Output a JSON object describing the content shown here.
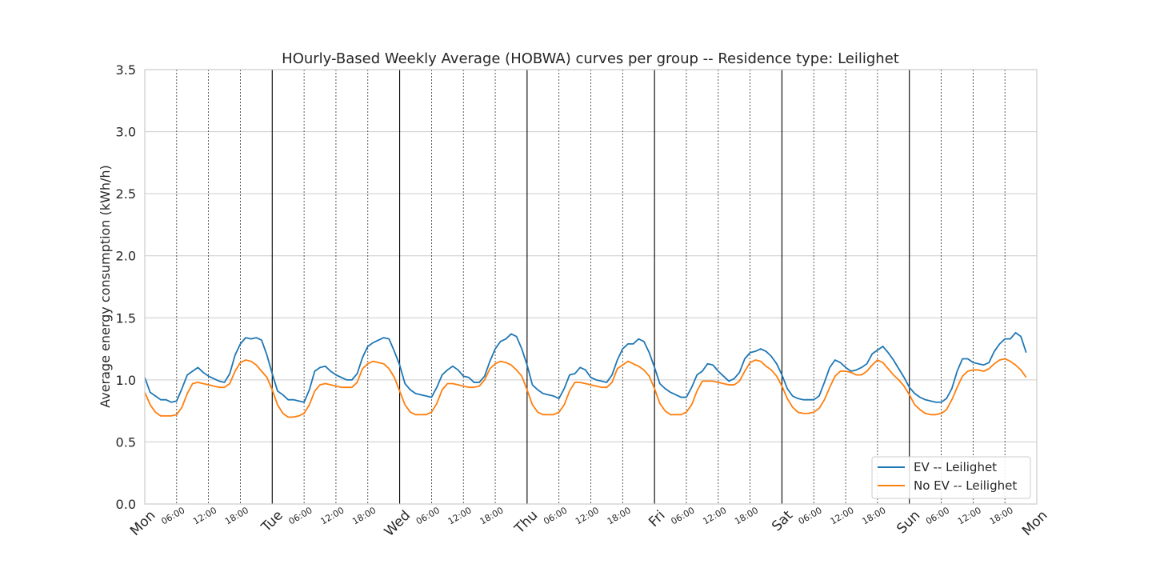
{
  "chart_data": {
    "type": "line",
    "title": "HOurly-Based Weekly Average (HOBWA) curves per group -- Residence type: Leilighet",
    "xlabel": "",
    "ylabel": "Average energy consumption (kWh/h)",
    "ylim": [
      0,
      3.5
    ],
    "xlim": [
      0,
      168
    ],
    "yticks": [
      0.0,
      0.5,
      1.0,
      1.5,
      2.0,
      2.5,
      3.0,
      3.5
    ],
    "ytick_labels": [
      "0.0",
      "0.5",
      "1.0",
      "1.5",
      "2.0",
      "2.5",
      "3.0",
      "3.5"
    ],
    "day_labels": [
      "Mon",
      "Tue",
      "Wed",
      "Thu",
      "Fri",
      "Sat",
      "Sun",
      "Mon"
    ],
    "hour_labels": [
      "06:00",
      "12:00",
      "18:00"
    ],
    "grid": true,
    "legend_position": "lower-right",
    "series": [
      {
        "name": "EV -- Leilighet",
        "color": "#1f77b4",
        "x_step_hours": 1,
        "values": [
          1.02,
          0.9,
          0.87,
          0.84,
          0.84,
          0.82,
          0.83,
          0.93,
          1.04,
          1.07,
          1.1,
          1.06,
          1.03,
          1.01,
          0.99,
          0.98,
          1.05,
          1.2,
          1.29,
          1.34,
          1.33,
          1.34,
          1.32,
          1.2,
          1.05,
          0.91,
          0.88,
          0.84,
          0.84,
          0.83,
          0.82,
          0.92,
          1.07,
          1.1,
          1.11,
          1.07,
          1.04,
          1.02,
          1.0,
          1.0,
          1.05,
          1.18,
          1.27,
          1.3,
          1.32,
          1.34,
          1.33,
          1.23,
          1.12,
          0.97,
          0.92,
          0.89,
          0.88,
          0.87,
          0.86,
          0.94,
          1.04,
          1.08,
          1.11,
          1.08,
          1.03,
          1.02,
          0.98,
          0.98,
          1.03,
          1.15,
          1.25,
          1.31,
          1.33,
          1.37,
          1.35,
          1.25,
          1.12,
          0.96,
          0.92,
          0.89,
          0.88,
          0.87,
          0.85,
          0.93,
          1.04,
          1.05,
          1.1,
          1.08,
          1.02,
          1.0,
          0.99,
          0.98,
          1.04,
          1.16,
          1.25,
          1.29,
          1.29,
          1.33,
          1.31,
          1.22,
          1.1,
          0.97,
          0.93,
          0.9,
          0.88,
          0.86,
          0.86,
          0.94,
          1.04,
          1.07,
          1.13,
          1.12,
          1.07,
          1.03,
          0.99,
          1.01,
          1.06,
          1.17,
          1.22,
          1.23,
          1.25,
          1.23,
          1.19,
          1.13,
          1.04,
          0.93,
          0.87,
          0.85,
          0.84,
          0.84,
          0.84,
          0.87,
          0.98,
          1.1,
          1.16,
          1.14,
          1.1,
          1.07,
          1.08,
          1.1,
          1.13,
          1.21,
          1.24,
          1.27,
          1.22,
          1.16,
          1.09,
          1.02,
          0.94,
          0.89,
          0.86,
          0.84,
          0.83,
          0.82,
          0.82,
          0.85,
          0.93,
          1.07,
          1.17,
          1.17,
          1.14,
          1.13,
          1.12,
          1.14,
          1.23,
          1.29,
          1.33,
          1.33,
          1.38,
          1.35,
          1.22
        ]
      },
      {
        "name": "No EV -- Leilighet",
        "color": "#ff7f0e",
        "x_step_hours": 1,
        "values": [
          0.9,
          0.8,
          0.74,
          0.71,
          0.71,
          0.71,
          0.72,
          0.78,
          0.89,
          0.97,
          0.98,
          0.97,
          0.96,
          0.95,
          0.94,
          0.94,
          0.97,
          1.07,
          1.14,
          1.16,
          1.15,
          1.12,
          1.07,
          1.02,
          0.92,
          0.8,
          0.73,
          0.7,
          0.7,
          0.71,
          0.73,
          0.8,
          0.91,
          0.96,
          0.97,
          0.96,
          0.95,
          0.94,
          0.94,
          0.94,
          0.98,
          1.09,
          1.13,
          1.15,
          1.14,
          1.13,
          1.09,
          1.02,
          0.91,
          0.8,
          0.74,
          0.72,
          0.72,
          0.72,
          0.74,
          0.81,
          0.92,
          0.97,
          0.97,
          0.96,
          0.95,
          0.94,
          0.94,
          0.95,
          1.0,
          1.09,
          1.13,
          1.15,
          1.14,
          1.12,
          1.08,
          1.03,
          0.92,
          0.8,
          0.74,
          0.72,
          0.72,
          0.72,
          0.74,
          0.8,
          0.91,
          0.98,
          0.98,
          0.97,
          0.96,
          0.95,
          0.94,
          0.94,
          0.98,
          1.09,
          1.12,
          1.15,
          1.13,
          1.11,
          1.08,
          1.03,
          0.93,
          0.81,
          0.75,
          0.72,
          0.72,
          0.72,
          0.74,
          0.8,
          0.91,
          0.99,
          0.99,
          0.99,
          0.98,
          0.97,
          0.96,
          0.96,
          0.99,
          1.07,
          1.14,
          1.16,
          1.15,
          1.11,
          1.08,
          1.03,
          0.95,
          0.85,
          0.78,
          0.74,
          0.73,
          0.73,
          0.74,
          0.77,
          0.84,
          0.94,
          1.03,
          1.07,
          1.07,
          1.06,
          1.04,
          1.04,
          1.07,
          1.12,
          1.16,
          1.14,
          1.09,
          1.04,
          1.0,
          0.95,
          0.88,
          0.8,
          0.76,
          0.73,
          0.72,
          0.72,
          0.73,
          0.76,
          0.84,
          0.94,
          1.03,
          1.07,
          1.08,
          1.08,
          1.07,
          1.09,
          1.13,
          1.16,
          1.17,
          1.15,
          1.12,
          1.08,
          1.02
        ]
      }
    ]
  }
}
